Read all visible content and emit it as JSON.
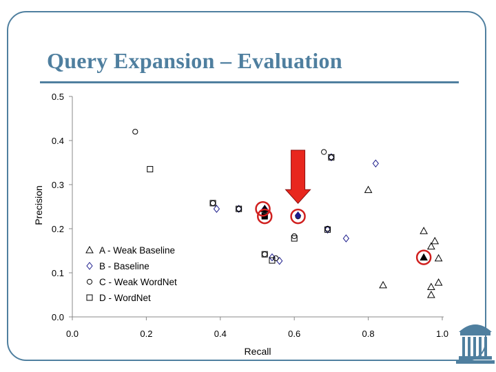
{
  "slide": {
    "title": "Query Expansion – Evaluation",
    "theme_color": "#4f7f9f"
  },
  "logo": {
    "icon": "old-well-icon"
  },
  "chart_data": {
    "type": "scatter",
    "xlabel": "Recall",
    "ylabel": "Precision",
    "xlim": [
      0.0,
      1.0
    ],
    "ylim": [
      0.0,
      0.5
    ],
    "xticks": [
      "0.0",
      "0.2",
      "0.4",
      "0.6",
      "0.8",
      "1.0"
    ],
    "yticks": [
      "0.0",
      "0.1",
      "0.2",
      "0.3",
      "0.4",
      "0.5"
    ],
    "grid": false,
    "legend_position": "bottom-left",
    "series": [
      {
        "name": "A - Weak Baseline",
        "marker": "triangle",
        "points": [
          [
            0.52,
            0.245
          ],
          [
            0.8,
            0.288
          ],
          [
            0.95,
            0.195
          ],
          [
            0.97,
            0.16
          ],
          [
            0.98,
            0.172
          ],
          [
            0.99,
            0.133
          ],
          [
            0.84,
            0.072
          ],
          [
            0.97,
            0.068
          ],
          [
            0.97,
            0.05
          ],
          [
            0.99,
            0.078
          ]
        ]
      },
      {
        "name": "B - Baseline",
        "marker": "diamond",
        "points": [
          [
            0.39,
            0.245
          ],
          [
            0.45,
            0.245
          ],
          [
            0.52,
            0.245
          ],
          [
            0.61,
            0.23
          ],
          [
            0.69,
            0.198
          ],
          [
            0.7,
            0.362
          ],
          [
            0.74,
            0.178
          ],
          [
            0.82,
            0.348
          ],
          [
            0.54,
            0.135
          ],
          [
            0.56,
            0.127
          ]
        ]
      },
      {
        "name": "C - Weak WordNet",
        "marker": "circle",
        "points": [
          [
            0.17,
            0.42
          ],
          [
            0.68,
            0.374
          ],
          [
            0.7,
            0.362
          ],
          [
            0.38,
            0.258
          ],
          [
            0.45,
            0.245
          ],
          [
            0.52,
            0.232
          ],
          [
            0.61,
            0.228
          ],
          [
            0.69,
            0.2
          ],
          [
            0.6,
            0.183
          ],
          [
            0.52,
            0.142
          ],
          [
            0.55,
            0.133
          ]
        ]
      },
      {
        "name": "D - WordNet",
        "marker": "square",
        "points": [
          [
            0.21,
            0.335
          ],
          [
            0.7,
            0.362
          ],
          [
            0.38,
            0.258
          ],
          [
            0.45,
            0.245
          ],
          [
            0.52,
            0.23
          ],
          [
            0.69,
            0.198
          ],
          [
            0.6,
            0.178
          ],
          [
            0.52,
            0.142
          ],
          [
            0.54,
            0.128
          ]
        ]
      }
    ],
    "filled_points": [
      {
        "series": "A - Weak Baseline",
        "point": [
          0.52,
          0.245
        ],
        "color": "#000000"
      },
      {
        "series": "D - WordNet",
        "point": [
          0.52,
          0.228
        ],
        "color": "#000000"
      },
      {
        "series": "B - Baseline",
        "point": [
          0.61,
          0.23
        ],
        "color": "#1c1c8c"
      },
      {
        "series": "A - Weak Baseline",
        "point": [
          0.95,
          0.135
        ],
        "color": "#000000"
      }
    ],
    "highlight_circles": [
      [
        0.515,
        0.245
      ],
      [
        0.52,
        0.228
      ],
      [
        0.61,
        0.228
      ],
      [
        0.95,
        0.135
      ]
    ],
    "highlight_color": "#d0201f",
    "arrow": {
      "points_to": [
        0.61,
        0.245
      ],
      "color": "#e8271e"
    },
    "marker_color": "#000000",
    "diamond_color": "#1c1c8c"
  }
}
